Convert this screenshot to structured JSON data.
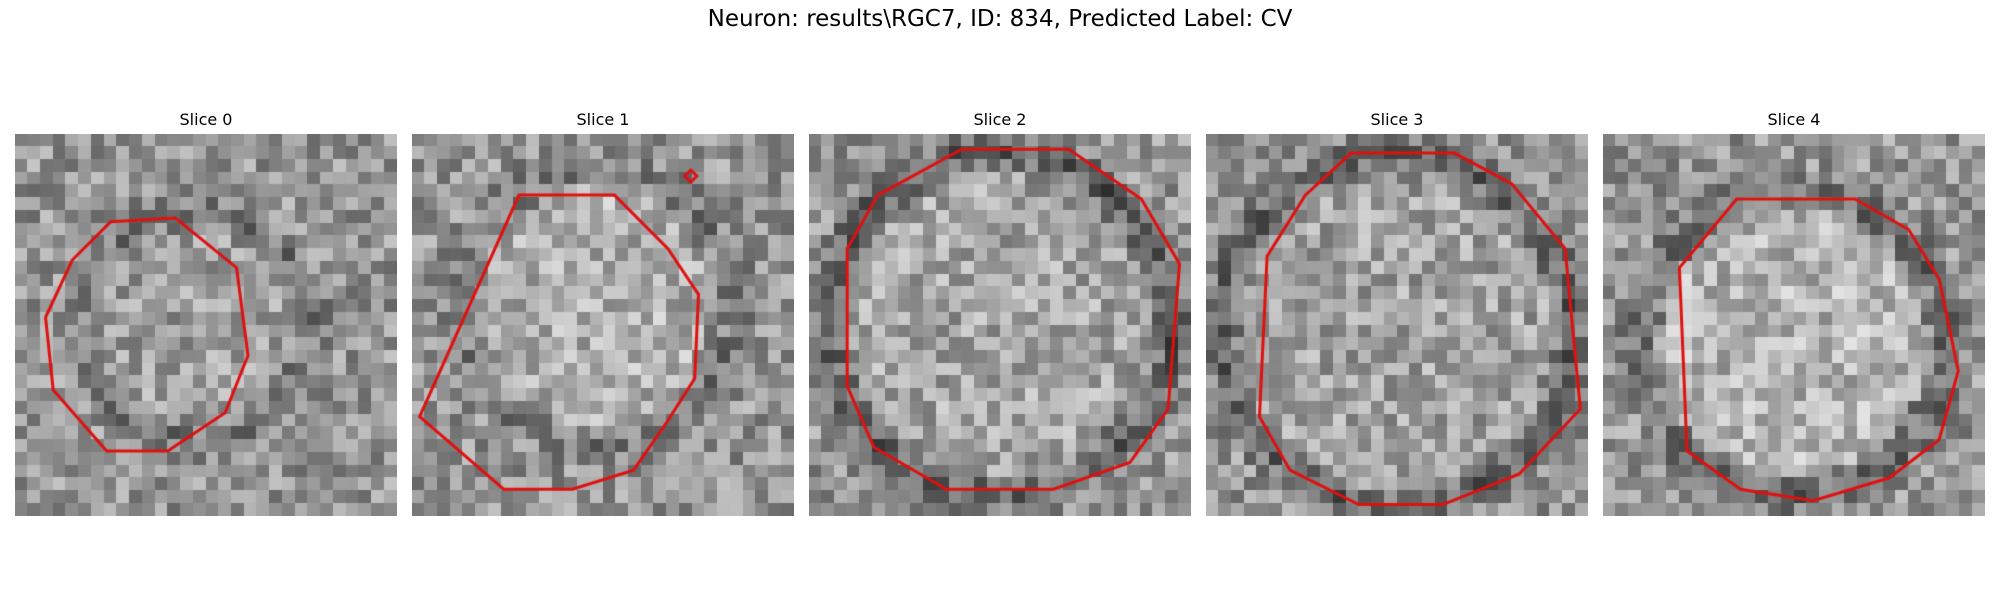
{
  "figure": {
    "title": "Neuron: results\\RGC7, ID: 834, Predicted Label: CV"
  },
  "colors": {
    "contour": "#e01010"
  },
  "panels": [
    {
      "title": "Slice 0"
    },
    {
      "title": "Slice 1"
    },
    {
      "title": "Slice 2"
    },
    {
      "title": "Slice 3"
    },
    {
      "title": "Slice 4"
    }
  ]
}
